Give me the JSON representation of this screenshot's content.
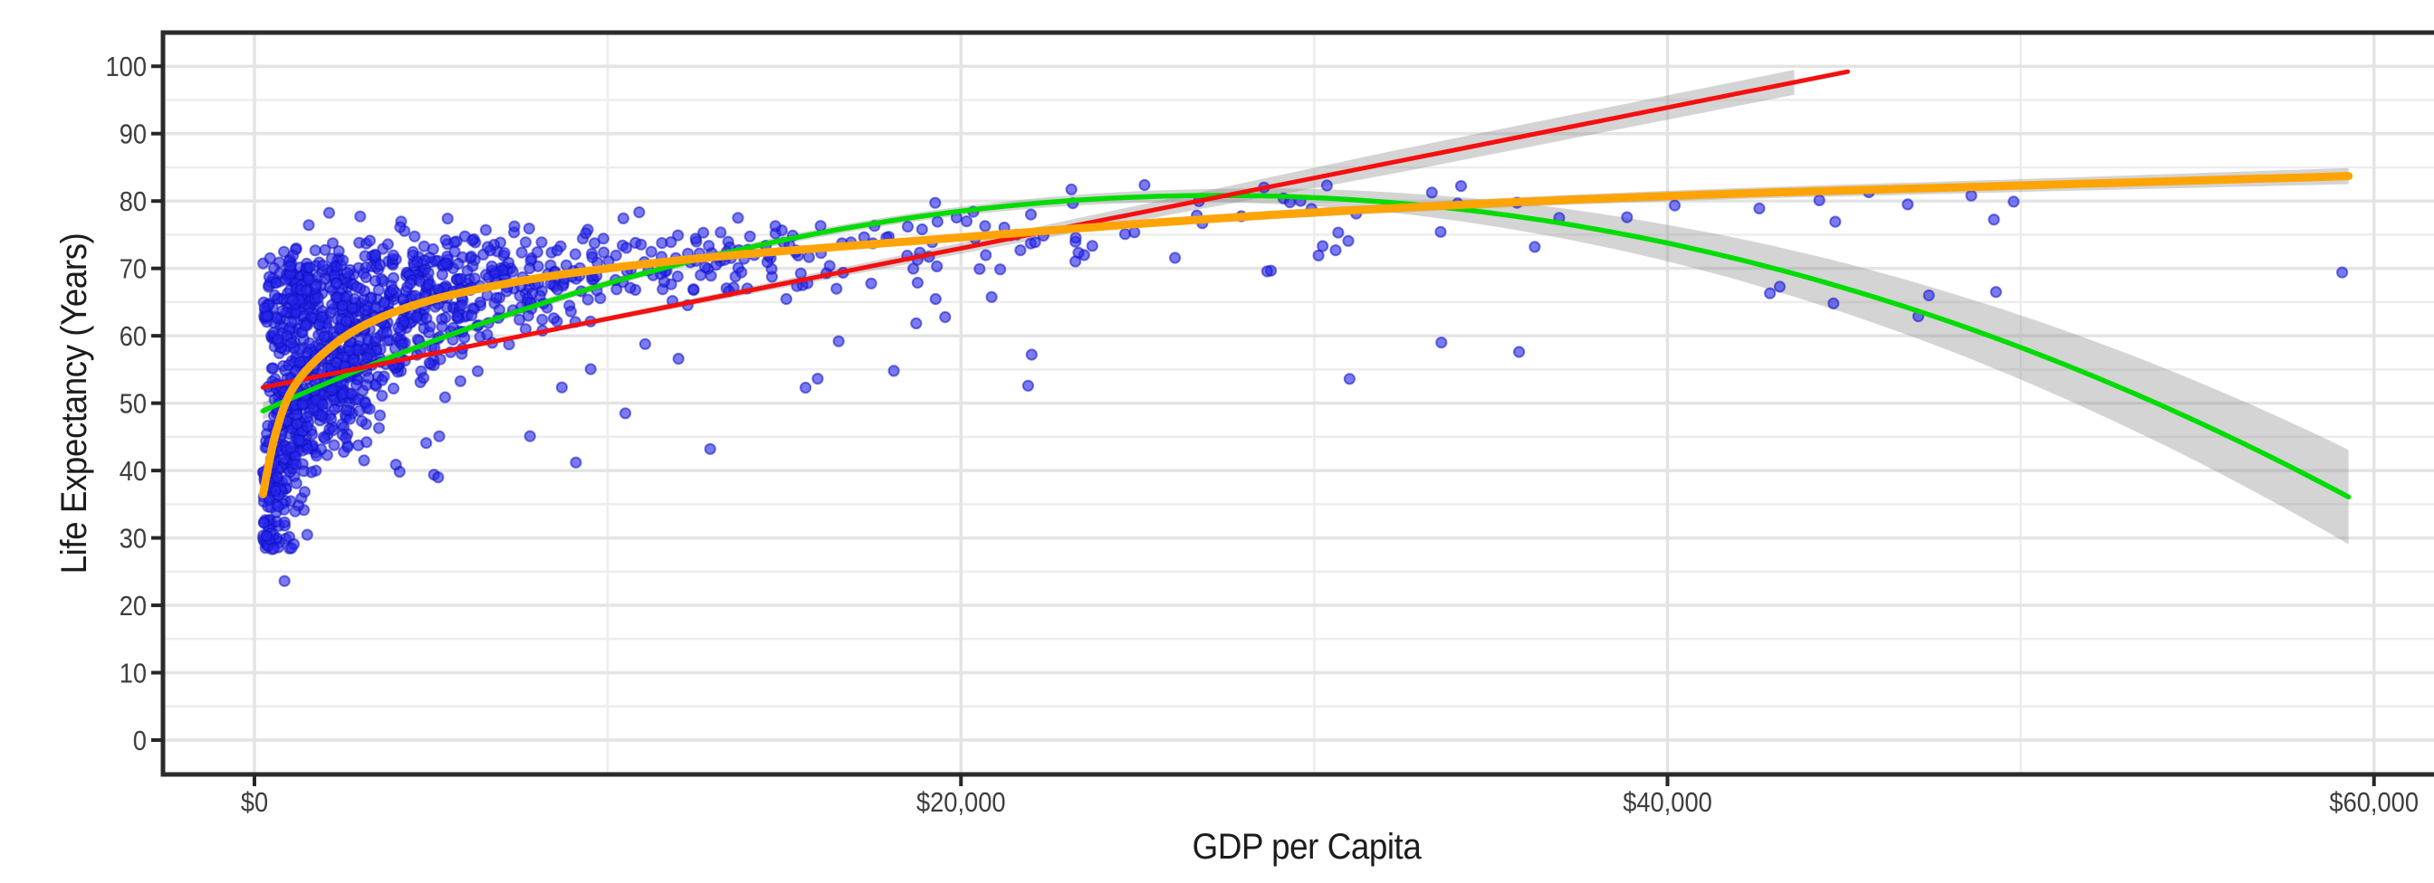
{
  "chart_data": {
    "type": "scatter",
    "title": "",
    "xlabel": "GDP per Capita",
    "ylabel": "Life Expectancy (Years)",
    "xlim": [
      -2589,
      62160
    ],
    "ylim": [
      -5.1,
      105.0
    ],
    "legend": "none",
    "grid": {
      "on": true,
      "major_color": "#e4e4e4",
      "minor_color": "#ededed",
      "major_width": 3.5,
      "minor_width": 2.5
    },
    "panel": {
      "background": "#ffffff",
      "border_color": "#2b2b2b",
      "border_width": 5,
      "tick_color": "#262626",
      "tick_label_color": "#3d3d3d",
      "tick_label_size": 31,
      "tick_length": 13
    },
    "x_ticks": {
      "values": [
        0,
        20000,
        40000,
        60000
      ],
      "labels": [
        "$0",
        "$20,000",
        "$40,000",
        "$60,000"
      ]
    },
    "x_minor_ticks": [
      10000,
      30000,
      50000
    ],
    "y_ticks": {
      "values": [
        0,
        10,
        20,
        30,
        40,
        50,
        60,
        70,
        80,
        90,
        100
      ],
      "labels": [
        "0",
        "10",
        "20",
        "30",
        "40",
        "50",
        "60",
        "70",
        "80",
        "90",
        "100"
      ]
    },
    "y_minor_ticks": [
      5,
      15,
      25,
      35,
      45,
      55,
      65,
      75,
      85,
      95
    ],
    "ribbon_color": "#8f8f8f",
    "ribbon_opacity": 0.38,
    "scatter": {
      "n": 1380,
      "seed": 7,
      "color": "#2828eb",
      "fill_opacity": 0.62,
      "stroke": "#1010c8",
      "stroke_opacity": 0.55,
      "stroke_width": 2,
      "radius": 5.6,
      "log_x_mean": 7.95,
      "log_x_sd": 1.18,
      "x_min": 241,
      "x_max": 49500,
      "healthy_prob": 0.3,
      "base": {
        "intercept": -14.0,
        "ln_coef": 9.0,
        "sd_a": 20.0,
        "sd_slope": 1.8,
        "sd_floor": 3.2
      },
      "healthy": {
        "base": 64.5,
        "slope": 2.1,
        "cap": 79.0,
        "sd": 3.4
      },
      "low_tail_prob": 0.05,
      "low_tail_min": 5,
      "low_tail_span": 13,
      "y_min": 28.2,
      "y_max": 82.6,
      "outliers": [
        [
          850,
          23.6
        ],
        [
          21900,
          52.6
        ],
        [
          22000,
          57.2
        ],
        [
          31000,
          53.6
        ],
        [
          33600,
          59.0
        ],
        [
          35800,
          57.6
        ],
        [
          5200,
          39.0
        ],
        [
          7800,
          45.1
        ],
        [
          10500,
          48.5
        ],
        [
          12900,
          43.2
        ],
        [
          9100,
          41.2
        ],
        [
          15600,
          52.3
        ],
        [
          18100,
          54.8
        ],
        [
          42900,
          66.3
        ],
        [
          44700,
          64.8
        ],
        [
          47100,
          62.9
        ],
        [
          47400,
          66.0
        ],
        [
          49300,
          66.5
        ],
        [
          42600,
          78.9
        ],
        [
          44300,
          80.1
        ],
        [
          46800,
          79.5
        ],
        [
          48600,
          80.8
        ],
        [
          45700,
          81.3
        ],
        [
          49800,
          79.9
        ],
        [
          59100,
          69.4
        ]
      ]
    },
    "smooths": [
      {
        "id": "quadratic-fit",
        "model": "quadratic",
        "color": "#00dc00",
        "width": 5.5,
        "coefs": [
          48.27,
          0.002386,
          -4.372e-08
        ],
        "x_range": [
          241,
          59280
        ],
        "ribbon": {
          "x_end": 59280,
          "half_width": [
            [
              241,
              1.3
            ],
            [
              2000,
              0.7
            ],
            [
              10000,
              0.55
            ],
            [
              20000,
              0.65
            ],
            [
              27000,
              0.95
            ],
            [
              33000,
              1.6
            ],
            [
              40000,
              2.7
            ],
            [
              48000,
              4.3
            ],
            [
              54000,
              5.7
            ],
            [
              59280,
              7.0
            ]
          ]
        }
      },
      {
        "id": "linear-fit",
        "model": "linear",
        "color": "#f50f0f",
        "width": 5,
        "coefs": [
          52.087,
          0.0010446
        ],
        "x_range": [
          241,
          45100
        ],
        "ribbon": {
          "x_end": 43590,
          "half_width": [
            [
              241,
              0.45
            ],
            [
              7200,
              0.3
            ],
            [
              20000,
              0.8
            ],
            [
              26000,
              1.2
            ],
            [
              32300,
              1.7
            ],
            [
              43590,
              1.85
            ]
          ]
        }
      },
      {
        "id": "smooth-fit",
        "model": "spline",
        "color": "#ffa405",
        "width": 9,
        "points": [
          [
            241,
            36.5
          ],
          [
            600,
            45.5
          ],
          [
            1100,
            52.3
          ],
          [
            2000,
            57.6
          ],
          [
            3200,
            61.8
          ],
          [
            5000,
            65.3
          ],
          [
            7500,
            68.1
          ],
          [
            10000,
            70.0
          ],
          [
            13000,
            71.7
          ],
          [
            16000,
            73.0
          ],
          [
            20000,
            74.6
          ],
          [
            25000,
            76.6
          ],
          [
            30000,
            78.3
          ],
          [
            36000,
            79.9
          ],
          [
            42000,
            81.1
          ],
          [
            48000,
            82.0
          ],
          [
            54000,
            82.9
          ],
          [
            59280,
            83.7
          ]
        ],
        "x_range": [
          241,
          59280
        ],
        "ribbon": {
          "x_end": 59280,
          "half_width": [
            [
              241,
              1.1
            ],
            [
              1000,
              0.7
            ],
            [
              5000,
              0.5
            ],
            [
              20000,
              0.55
            ],
            [
              35000,
              0.7
            ],
            [
              50000,
              0.95
            ],
            [
              59280,
              1.2
            ]
          ]
        }
      }
    ]
  }
}
